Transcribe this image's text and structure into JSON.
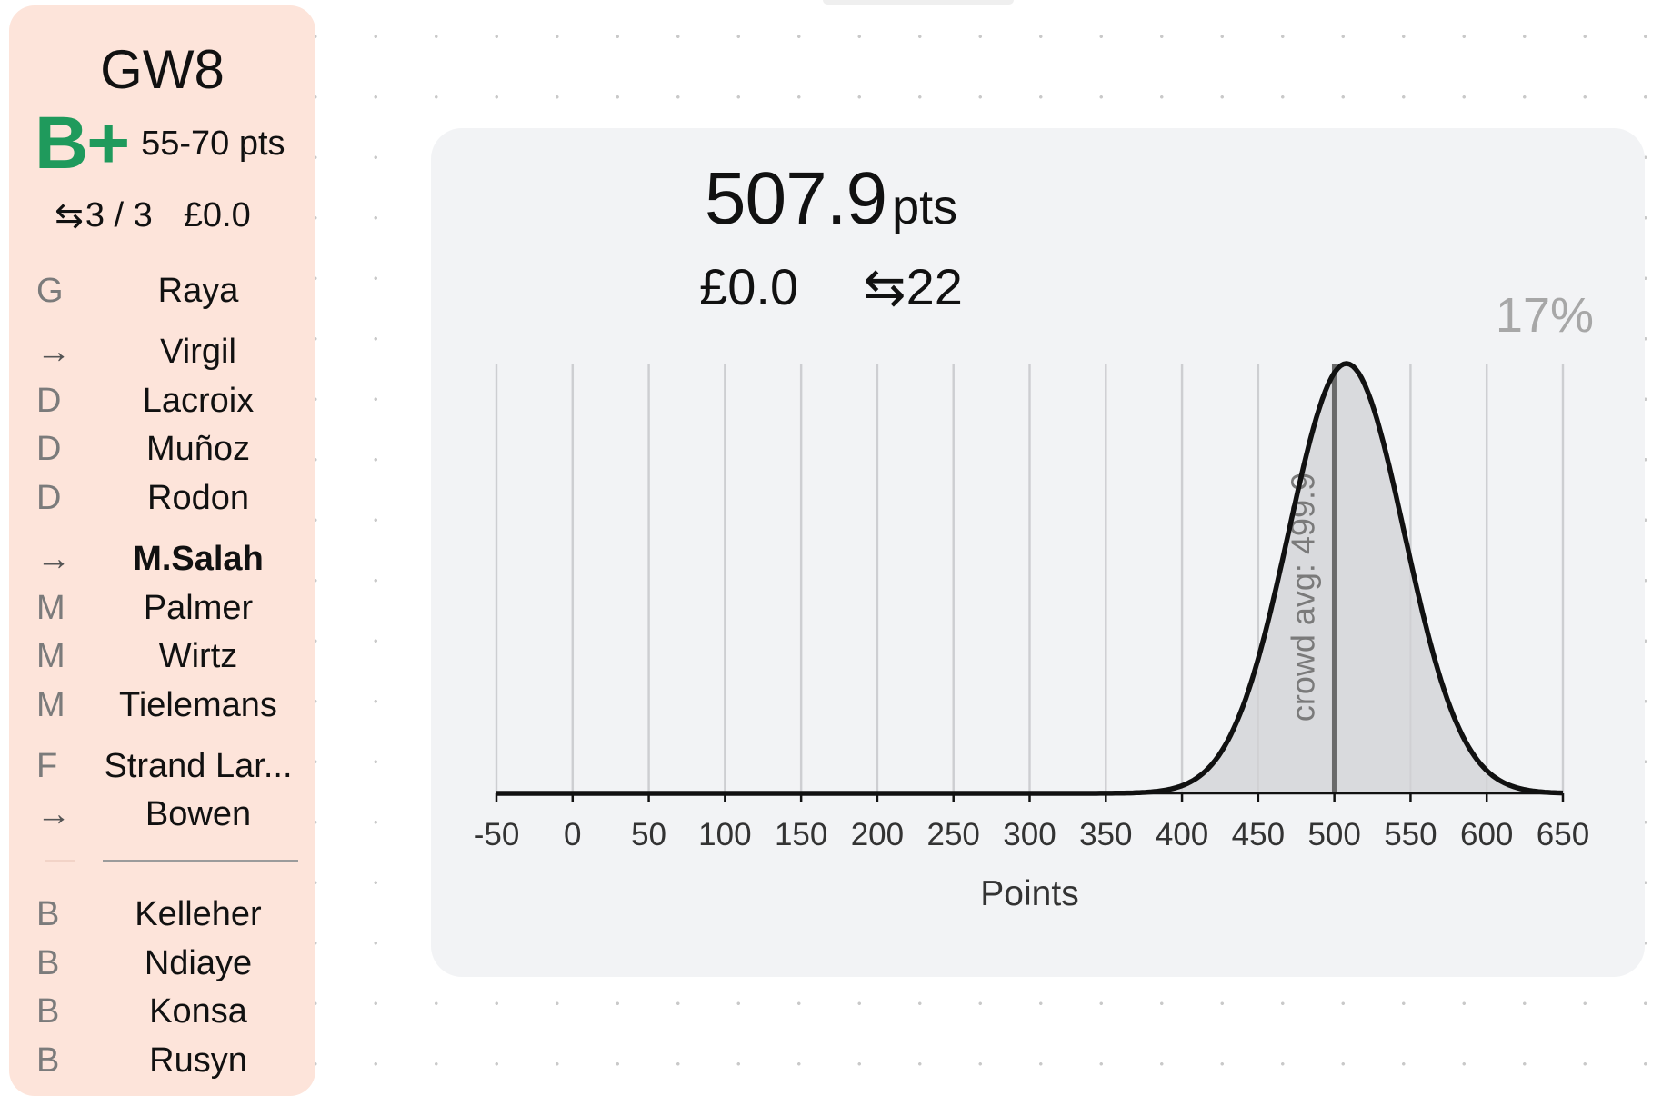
{
  "sidebar": {
    "gameweek": "GW8",
    "grade": "B+",
    "grade_range": "55-70 pts",
    "transfers_symbol": "⇆",
    "transfers": "3 / 3",
    "budget": "£0.0",
    "grade_color": "#1f9a5c",
    "players": [
      {
        "pos": "G",
        "name": "Raya"
      },
      {
        "pos": "→",
        "name": "Virgil"
      },
      {
        "pos": "D",
        "name": "Lacroix"
      },
      {
        "pos": "D",
        "name": "Muñoz"
      },
      {
        "pos": "D",
        "name": "Rodon"
      },
      {
        "pos": "→",
        "name": "M.Salah"
      },
      {
        "pos": "M",
        "name": "Palmer"
      },
      {
        "pos": "M",
        "name": "Wirtz"
      },
      {
        "pos": "M",
        "name": "Tielemans"
      },
      {
        "pos": "F",
        "name": "Strand Lar..."
      },
      {
        "pos": "→",
        "name": "Bowen"
      }
    ],
    "bench": [
      {
        "pos": "B",
        "name": "Kelleher"
      },
      {
        "pos": "B",
        "name": "Ndiaye"
      },
      {
        "pos": "B",
        "name": "Konsa"
      },
      {
        "pos": "B",
        "name": "Rusyn"
      }
    ]
  },
  "summary": {
    "points": "507.9",
    "points_unit": "pts",
    "budget": "£0.0",
    "transfers_symbol": "⇆",
    "transfers": "22",
    "percentile": "17%"
  },
  "chart_data": {
    "type": "area",
    "xlabel": "Points",
    "ylabel": "",
    "xlim": [
      -50,
      650
    ],
    "x_ticks": [
      -50,
      0,
      50,
      100,
      150,
      200,
      250,
      300,
      350,
      400,
      450,
      500,
      550,
      600,
      650
    ],
    "grid": "vertical",
    "curve": {
      "mean": 507.9,
      "sd": 38
    },
    "reference_line": {
      "value": 499.9,
      "label": "crowd avg: 499.9"
    },
    "fill_color": "#d9dadd",
    "line_color": "#111111",
    "ref_color": "#6a6a6a"
  }
}
